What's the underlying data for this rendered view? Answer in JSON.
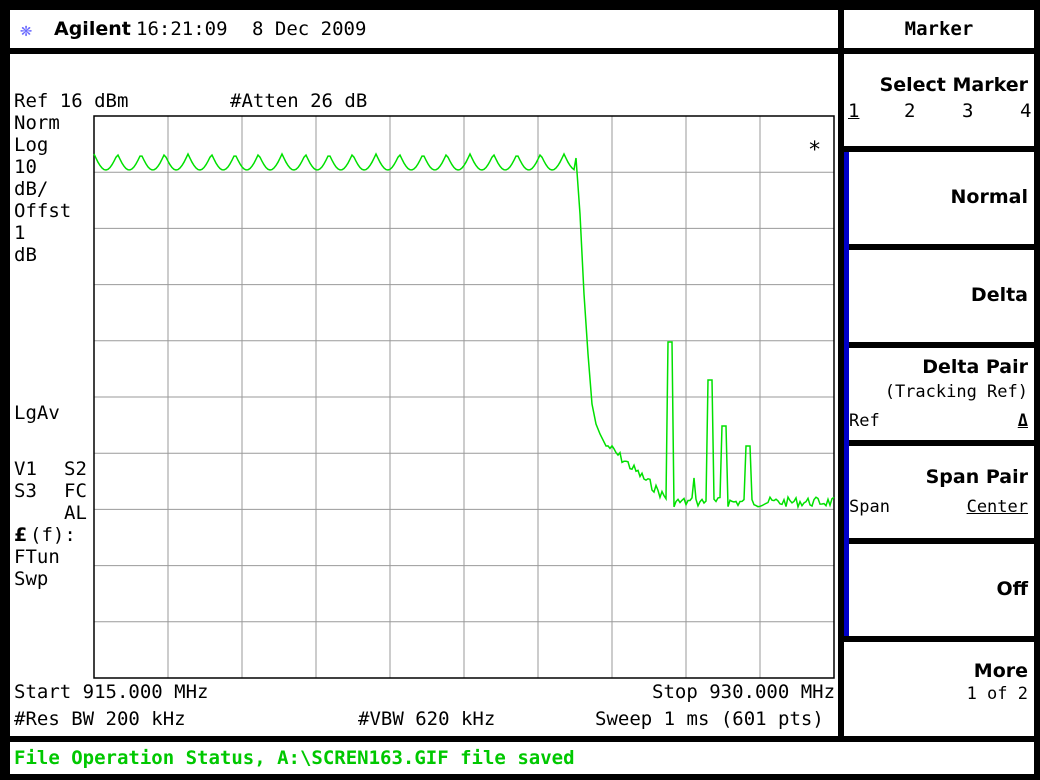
{
  "header": {
    "brand": "Agilent",
    "time": "16:21:09",
    "date": "8 Dec 2009",
    "logo_icon": "agilent-spark-icon"
  },
  "screen": {
    "ref_level": "Ref 16 dBm",
    "attenuation": "#Atten 26 dB",
    "left_annotations": [
      "Norm",
      "Log",
      "10",
      "dB/",
      "Offst",
      "1",
      "dB"
    ],
    "lgav": "LgAv",
    "v1": "V1",
    "s2": "S2",
    "s3": "S3",
    "fc": "FC",
    "al": "AL",
    "ff_symbol": "£",
    "ff_text": "(f):",
    "ftun": "FTun",
    "swp": "Swp",
    "marker_flag": "*",
    "start_freq": "Start 915.000 MHz",
    "stop_freq": "Stop 930.000 MHz",
    "res_bw": "#Res BW 200 kHz",
    "vbw": "#VBW 620 kHz",
    "sweep": "Sweep 1 ms (601 pts)",
    "trace_color": "#00e000"
  },
  "status": {
    "message": "File Operation Status, A:\\SCREN163.GIF file saved",
    "color": "#00c800"
  },
  "softkeys": {
    "menu_title": "Marker",
    "select_marker": {
      "label": "Select Marker",
      "options": [
        "1",
        "2",
        "3",
        "4"
      ],
      "selected": "1"
    },
    "normal": "Normal",
    "delta": "Delta",
    "delta_pair": {
      "label": "Delta Pair",
      "sub": "(Tracking Ref)",
      "left": "Ref",
      "right": "Δ"
    },
    "span_pair": {
      "label": "Span Pair",
      "left": "Span",
      "right": "Center"
    },
    "off": "Off",
    "more": {
      "label": "More",
      "sub": "1 of 2"
    }
  }
}
